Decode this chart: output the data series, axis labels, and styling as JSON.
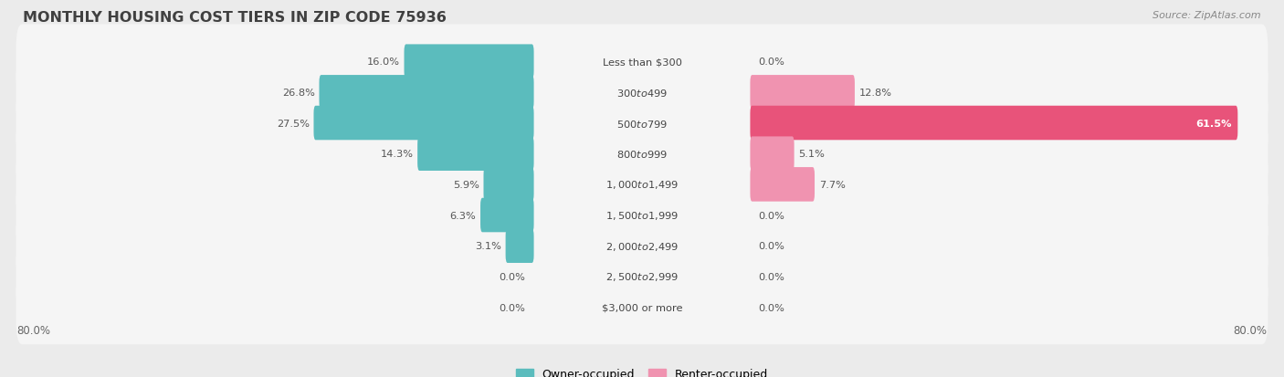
{
  "title": "MONTHLY HOUSING COST TIERS IN ZIP CODE 75936",
  "source": "Source: ZipAtlas.com",
  "categories": [
    "Less than $300",
    "$300 to $499",
    "$500 to $799",
    "$800 to $999",
    "$1,000 to $1,499",
    "$1,500 to $1,999",
    "$2,000 to $2,499",
    "$2,500 to $2,999",
    "$3,000 or more"
  ],
  "owner_values": [
    16.0,
    26.8,
    27.5,
    14.3,
    5.9,
    6.3,
    3.1,
    0.0,
    0.0
  ],
  "renter_values": [
    0.0,
    12.8,
    61.5,
    5.1,
    7.7,
    0.0,
    0.0,
    0.0,
    0.0
  ],
  "owner_color": "#5bbcbd",
  "renter_color": "#f093b0",
  "renter_color_strong": "#e8537a",
  "axis_max": 80.0,
  "background_color": "#ebebeb",
  "row_bg_color": "#f5f5f5",
  "row_bg_color2": "#e8e8e8",
  "label_color": "#555555",
  "title_color": "#404040",
  "value_color": "#555555",
  "cat_label_color": "#444444",
  "legend_owner": "Owner-occupied",
  "legend_renter": "Renter-occupied"
}
